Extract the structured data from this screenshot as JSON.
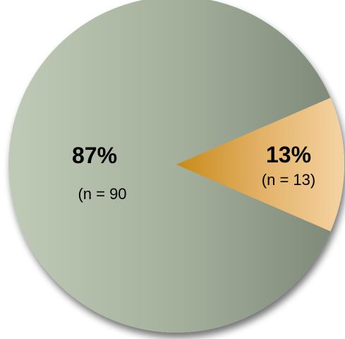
{
  "chart_data": {
    "type": "pie",
    "title": "",
    "slices": [
      {
        "value": 87,
        "percent_label": "87%",
        "count_label": "(n = 90",
        "color": "#a7b4a0"
      },
      {
        "value": 13,
        "percent_label": "13%",
        "count_label": "(n = 13)",
        "color": "#d8a24a"
      }
    ],
    "legend": "none"
  }
}
